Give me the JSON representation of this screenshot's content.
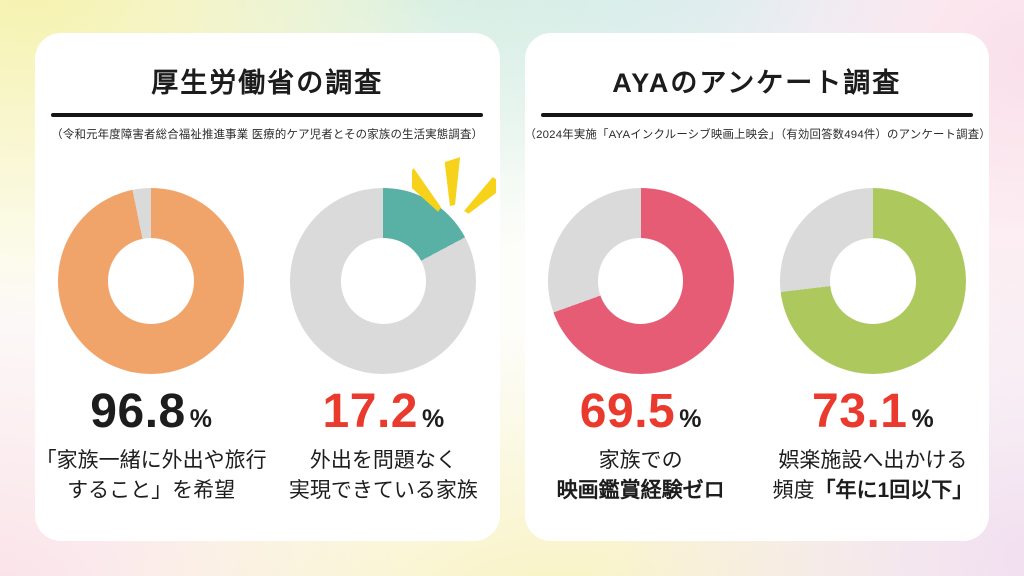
{
  "colors": {
    "red_accent": "#e93a2d",
    "text_dark": "#1d1d1d",
    "donut_rest_gray": "#dadada",
    "sparkle_yellow": "#f7d21b",
    "card_bg": "#ffffff"
  },
  "cards": [
    {
      "title": "厚生労働省の調査",
      "subtitle": "（令和元年度障害者総合福祉推進事業 医療的ケア児者とその家族の生活実態調査）",
      "stats": [
        {
          "value": "96.8",
          "unit": "%",
          "value_color": "#1d1d1d",
          "sparkle": false,
          "donut": {
            "percent": 96.8,
            "color": "#f0a469",
            "rest_color": "#dadada"
          },
          "label_lines": [
            [
              {
                "text": "「家族一緒に外出や旅行",
                "bold": false
              }
            ],
            [
              {
                "text": "すること」を希望",
                "bold": false
              }
            ]
          ]
        },
        {
          "value": "17.2",
          "unit": "%",
          "value_color": "#e93a2d",
          "sparkle": true,
          "donut": {
            "percent": 17.2,
            "color": "#58b1a4",
            "rest_color": "#dadada"
          },
          "label_lines": [
            [
              {
                "text": "外出を問題なく",
                "bold": false
              }
            ],
            [
              {
                "text": "実現できている家族",
                "bold": false
              }
            ]
          ]
        }
      ]
    },
    {
      "title": "AYAのアンケート調査",
      "subtitle": "（2024年実施「AYAインクルーシブ映画上映会」（有効回答数494件）のアンケート調査）",
      "stats": [
        {
          "value": "69.5",
          "unit": "%",
          "value_color": "#e93a2d",
          "sparkle": false,
          "donut": {
            "percent": 69.5,
            "color": "#e65c74",
            "rest_color": "#dadada"
          },
          "label_lines": [
            [
              {
                "text": "家族での",
                "bold": false
              }
            ],
            [
              {
                "text": "映画鑑賞経験ゼロ",
                "bold": true
              }
            ]
          ]
        },
        {
          "value": "73.1",
          "unit": "%",
          "value_color": "#e93a2d",
          "sparkle": false,
          "donut": {
            "percent": 73.1,
            "color": "#adc95d",
            "rest_color": "#dadada"
          },
          "label_lines": [
            [
              {
                "text": "娯楽施設へ出かける",
                "bold": false
              }
            ],
            [
              {
                "text": "頻度",
                "bold": false
              },
              {
                "text": "「年に1回以下」",
                "bold": true
              }
            ]
          ]
        }
      ]
    }
  ],
  "chart_data": [
    {
      "type": "pie",
      "style": "donut",
      "card": "厚生労働省の調査",
      "label": "「家族一緒に外出や旅行すること」を希望",
      "value_label": "96.8%",
      "slices": [
        {
          "name": "highlight",
          "value": 96.8,
          "color": "#f0a469"
        },
        {
          "name": "remainder",
          "value": 3.2,
          "color": "#dadada"
        }
      ]
    },
    {
      "type": "pie",
      "style": "donut",
      "card": "厚生労働省の調査",
      "label": "外出を問題なく実現できている家族",
      "value_label": "17.2%",
      "slices": [
        {
          "name": "highlight",
          "value": 17.2,
          "color": "#58b1a4"
        },
        {
          "name": "remainder",
          "value": 82.8,
          "color": "#dadada"
        }
      ]
    },
    {
      "type": "pie",
      "style": "donut",
      "card": "AYAのアンケート調査",
      "label": "家族での映画鑑賞経験ゼロ",
      "value_label": "69.5%",
      "slices": [
        {
          "name": "highlight",
          "value": 69.5,
          "color": "#e65c74"
        },
        {
          "name": "remainder",
          "value": 30.5,
          "color": "#dadada"
        }
      ]
    },
    {
      "type": "pie",
      "style": "donut",
      "card": "AYAのアンケート調査",
      "label": "娯楽施設へ出かける頻度「年に1回以下」",
      "value_label": "73.1%",
      "slices": [
        {
          "name": "highlight",
          "value": 73.1,
          "color": "#adc95d"
        },
        {
          "name": "remainder",
          "value": 26.9,
          "color": "#dadada"
        }
      ]
    }
  ]
}
